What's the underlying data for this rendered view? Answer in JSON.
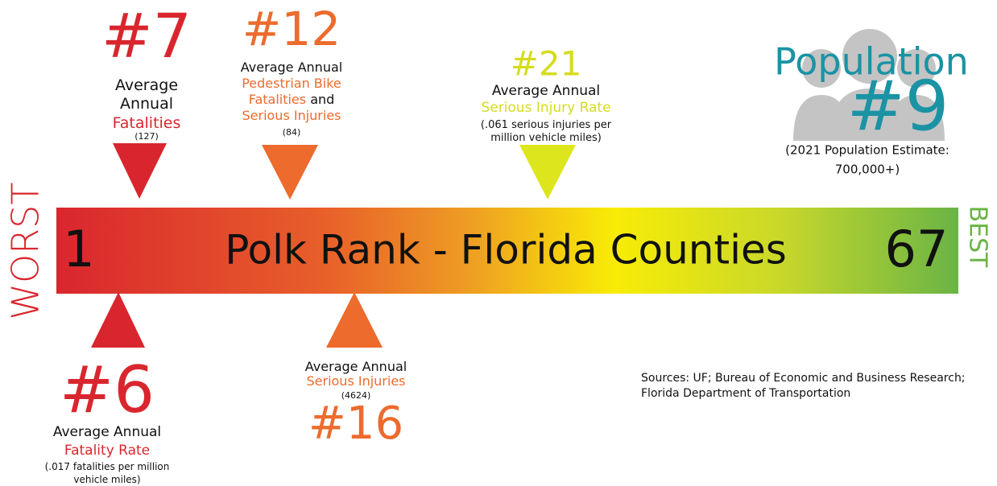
{
  "scale": {
    "worst": "WORST",
    "best": "BEST",
    "start": "1",
    "title": "Polk Rank - Florida Counties",
    "end": "67"
  },
  "items": [
    {
      "rank": "#7",
      "color": "#d9262e",
      "lines": [
        [
          {
            "text": "Average"
          }
        ],
        [
          {
            "text": "Annual"
          }
        ],
        [
          {
            "text": "Fatalities",
            "highlight": true
          }
        ],
        [
          {
            "text": "(127)"
          }
        ]
      ]
    },
    {
      "rank": "#12",
      "color": "#ec6b2d",
      "lines": [
        [
          {
            "text": "Average Annual"
          }
        ],
        [
          {
            "text": "Pedestrian Bike",
            "highlight": true
          }
        ],
        [
          {
            "text": "Fatalities",
            "highlight": true
          },
          {
            "text": " and"
          }
        ],
        [
          {
            "text": "Serious Injuries",
            "highlight": true
          }
        ],
        [
          {
            "text": "(84)"
          }
        ]
      ]
    },
    {
      "rank": "#21",
      "color": "#d6dc1e",
      "lines": [
        [
          {
            "text": "Average Annual"
          }
        ],
        [
          {
            "text": "Serious Injury Rate",
            "highlight": true
          }
        ],
        [
          {
            "text": "(.061 serious injuries per"
          }
        ],
        [
          {
            "text": "million vehicle miles)"
          }
        ]
      ]
    },
    {
      "rank": "#6",
      "color": "#d9262e",
      "lines": [
        [
          {
            "text": "Average Annual"
          }
        ],
        [
          {
            "text": "Fatality Rate",
            "highlight": true
          }
        ],
        [
          {
            "text": "(.017 fatalities per million"
          }
        ],
        [
          {
            "text": "vehicle miles)"
          }
        ]
      ]
    },
    {
      "rank": "#16",
      "color": "#ec6b2d",
      "lines": [
        [
          {
            "text": "Average Annual"
          }
        ],
        [
          {
            "text": "Serious Injuries",
            "highlight": true
          }
        ],
        [
          {
            "text": "(4624)"
          }
        ]
      ]
    }
  ],
  "population": {
    "label": "Population",
    "rank": "#9",
    "color": "#1a93a4",
    "notes": [
      "(2021 Population Estimate:",
      "700,000+)"
    ]
  },
  "sources": [
    "Sources: UF; Bureau of Economic and Business Research;",
    "Florida Department of Transportation"
  ]
}
